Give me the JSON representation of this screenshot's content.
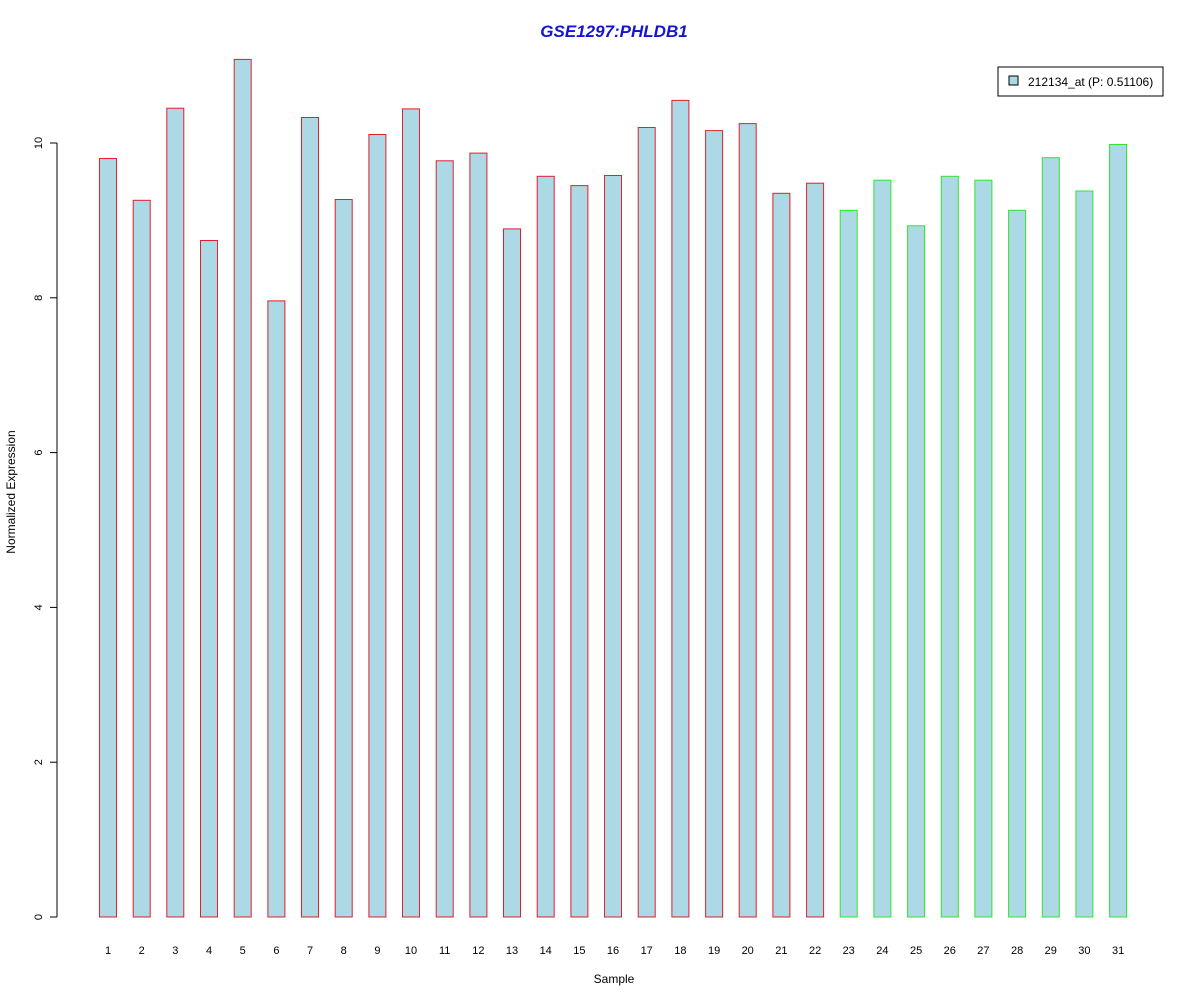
{
  "chart_data": {
    "type": "bar",
    "title": "GSE1297:PHLDB1",
    "xlabel": "Sample",
    "ylabel": "Normalized Expression",
    "categories": [
      "1",
      "2",
      "3",
      "4",
      "5",
      "6",
      "7",
      "8",
      "9",
      "10",
      "11",
      "12",
      "13",
      "14",
      "15",
      "16",
      "17",
      "18",
      "19",
      "20",
      "21",
      "22",
      "23",
      "24",
      "25",
      "26",
      "27",
      "28",
      "29",
      "30",
      "31"
    ],
    "series": [
      {
        "name": "212134_at (P: 0.51106)",
        "values": [
          9.8,
          9.26,
          10.45,
          8.74,
          11.08,
          7.96,
          10.33,
          9.27,
          10.11,
          10.44,
          9.77,
          9.87,
          8.89,
          9.57,
          9.45,
          9.58,
          10.2,
          10.55,
          10.16,
          10.25,
          9.35,
          9.48,
          9.13,
          9.52,
          8.93,
          9.57,
          9.52,
          9.13,
          9.81,
          9.38,
          9.98
        ]
      }
    ],
    "group_border_colors": [
      "#e0202a",
      "#e0202a",
      "#e0202a",
      "#e0202a",
      "#e0202a",
      "#e0202a",
      "#e0202a",
      "#e0202a",
      "#e0202a",
      "#e0202a",
      "#e0202a",
      "#e0202a",
      "#e0202a",
      "#e0202a",
      "#e0202a",
      "#e0202a",
      "#e0202a",
      "#e0202a",
      "#e0202a",
      "#e0202a",
      "#e0202a",
      "#e0202a",
      "#2ee62e",
      "#2ee62e",
      "#2ee62e",
      "#2ee62e",
      "#2ee62e",
      "#2ee62e",
      "#2ee62e",
      "#2ee62e",
      "#2ee62e"
    ],
    "bar_fill": "#add8e6",
    "title_color": "#1414d4",
    "yticks": [
      "0",
      "2",
      "4",
      "6",
      "8",
      "10"
    ],
    "ylim": [
      0,
      11.08
    ],
    "grid": false,
    "legend_position": "top-right"
  }
}
